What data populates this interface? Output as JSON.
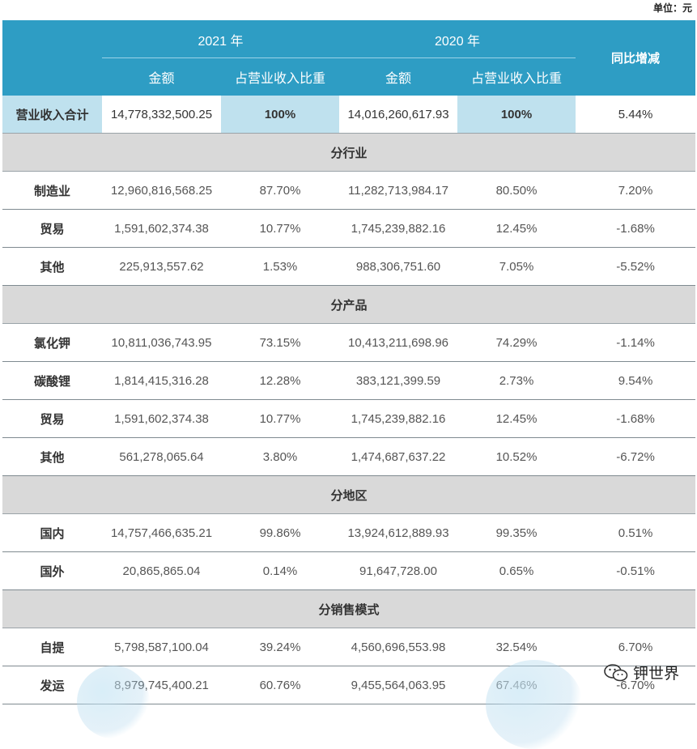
{
  "unit_label": "单位：元",
  "header": {
    "year_2021": "2021 年",
    "year_2020": "2020 年",
    "amount": "金额",
    "share": "占营业收入比重",
    "yoy": "同比增减"
  },
  "total": {
    "label": "营业收入合计",
    "amount_2021": "14,778,332,500.25",
    "share_2021": "100%",
    "amount_2020": "14,016,260,617.93",
    "share_2020": "100%",
    "yoy": "5.44%"
  },
  "sections": [
    {
      "title": "分行业",
      "rows": [
        {
          "label": "制造业",
          "amount_2021": "12,960,816,568.25",
          "share_2021": "87.70%",
          "amount_2020": "11,282,713,984.17",
          "share_2020": "80.50%",
          "yoy": "7.20%"
        },
        {
          "label": "贸易",
          "amount_2021": "1,591,602,374.38",
          "share_2021": "10.77%",
          "amount_2020": "1,745,239,882.16",
          "share_2020": "12.45%",
          "yoy": "-1.68%"
        },
        {
          "label": "其他",
          "amount_2021": "225,913,557.62",
          "share_2021": "1.53%",
          "amount_2020": "988,306,751.60",
          "share_2020": "7.05%",
          "yoy": "-5.52%"
        }
      ]
    },
    {
      "title": "分产品",
      "rows": [
        {
          "label": "氯化钾",
          "amount_2021": "10,811,036,743.95",
          "share_2021": "73.15%",
          "amount_2020": "10,413,211,698.96",
          "share_2020": "74.29%",
          "yoy": "-1.14%"
        },
        {
          "label": "碳酸锂",
          "amount_2021": "1,814,415,316.28",
          "share_2021": "12.28%",
          "amount_2020": "383,121,399.59",
          "share_2020": "2.73%",
          "yoy": "9.54%"
        },
        {
          "label": "贸易",
          "amount_2021": "1,591,602,374.38",
          "share_2021": "10.77%",
          "amount_2020": "1,745,239,882.16",
          "share_2020": "12.45%",
          "yoy": "-1.68%"
        },
        {
          "label": "其他",
          "amount_2021": "561,278,065.64",
          "share_2021": "3.80%",
          "amount_2020": "1,474,687,637.22",
          "share_2020": "10.52%",
          "yoy": "-6.72%"
        }
      ]
    },
    {
      "title": "分地区",
      "rows": [
        {
          "label": "国内",
          "amount_2021": "14,757,466,635.21",
          "share_2021": "99.86%",
          "amount_2020": "13,924,612,889.93",
          "share_2020": "99.35%",
          "yoy": "0.51%"
        },
        {
          "label": "国外",
          "amount_2021": "20,865,865.04",
          "share_2021": "0.14%",
          "amount_2020": "91,647,728.00",
          "share_2020": "0.65%",
          "yoy": "-0.51%"
        }
      ]
    },
    {
      "title": "分销售模式",
      "rows": [
        {
          "label": "自提",
          "amount_2021": "5,798,587,100.04",
          "share_2021": "39.24%",
          "amount_2020": "4,560,696,553.98",
          "share_2020": "32.54%",
          "yoy": "6.70%"
        },
        {
          "label": "发运",
          "amount_2021": "8,979,745,400.21",
          "share_2021": "60.76%",
          "amount_2020": "9,455,564,063.95",
          "share_2020": "67.46%",
          "yoy": "-6.70%"
        }
      ]
    }
  ],
  "watermark": {
    "text": "钾世界",
    "icon": "wechat-icon"
  }
}
